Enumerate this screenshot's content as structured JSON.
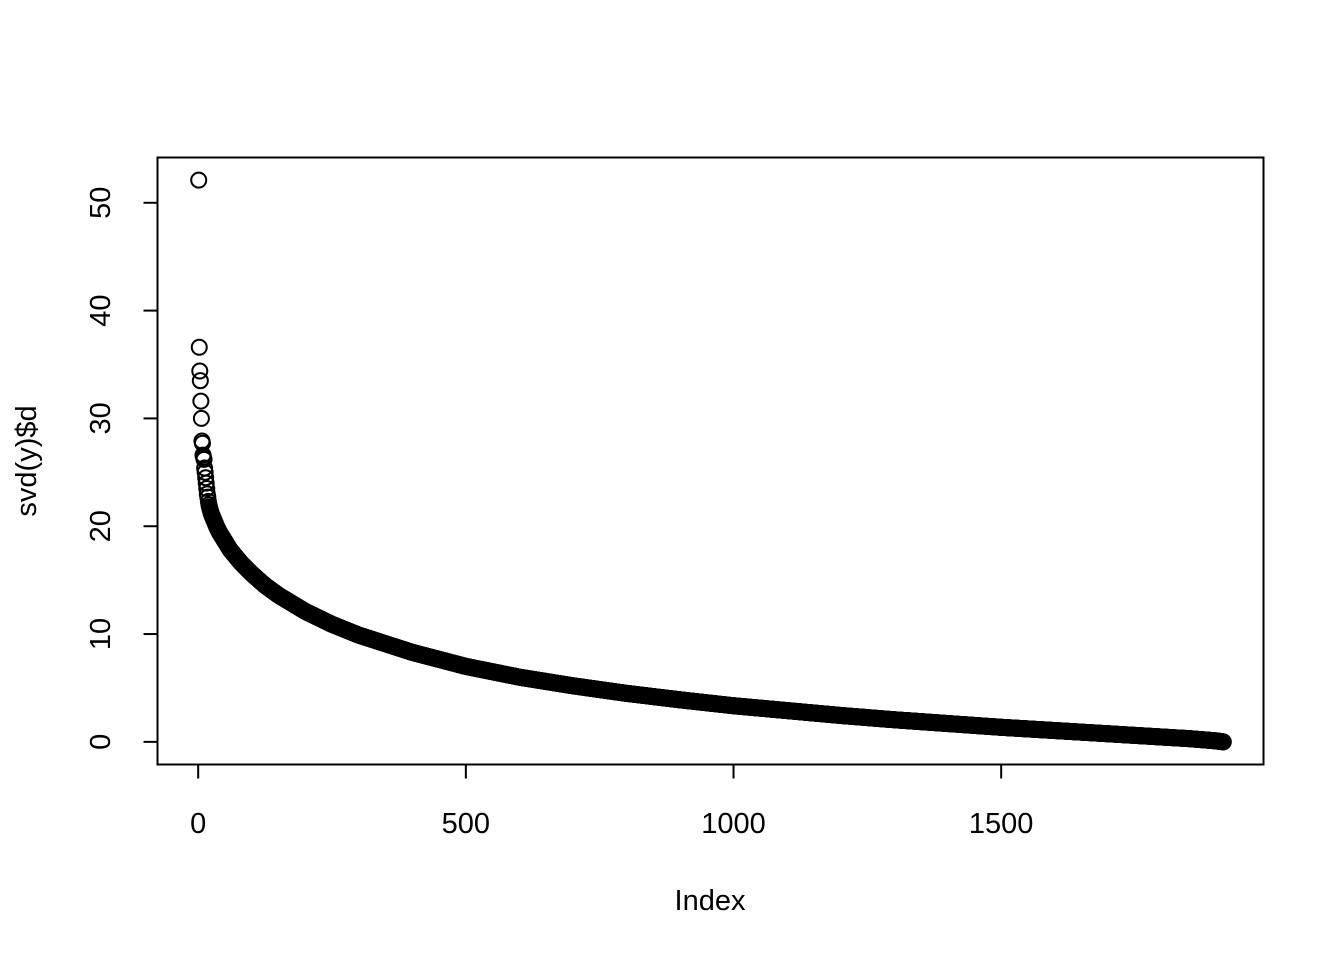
{
  "chart_data": {
    "type": "scatter",
    "title": "",
    "xlabel": "Index",
    "ylabel": "svd(y)$d",
    "xlim": [
      -76,
      1990
    ],
    "ylim": [
      -2.1,
      54.2
    ],
    "x_ticks": [
      0,
      500,
      1000,
      1500
    ],
    "x_tick_labels": [
      "0",
      "500",
      "1000",
      "1500"
    ],
    "y_ticks": [
      0,
      10,
      20,
      30,
      40,
      50
    ],
    "y_tick_labels": [
      "0",
      "10",
      "20",
      "30",
      "40",
      "50"
    ],
    "grid": false,
    "legend": "none",
    "marker": "open-circle",
    "n_points": 1915,
    "series": [
      {
        "x": [
          1,
          2,
          3,
          4,
          5,
          6,
          7,
          8,
          9,
          10,
          11,
          12,
          13,
          14,
          15,
          16,
          17,
          18,
          19,
          20,
          22,
          25,
          30,
          35,
          40,
          50,
          60,
          70,
          80,
          100,
          125,
          150,
          200,
          250,
          300,
          400,
          500,
          600,
          700,
          800,
          900,
          1000,
          1100,
          1200,
          1300,
          1400,
          1500,
          1600,
          1700,
          1800,
          1850,
          1900,
          1915
        ],
        "values": [
          52.1,
          36.6,
          34.4,
          33.5,
          31.6,
          30.0,
          27.9,
          27.7,
          26.6,
          26.4,
          26.2,
          25.4,
          25.0,
          24.5,
          24.0,
          23.5,
          23.0,
          22.7,
          22.3,
          22.0,
          21.6,
          21.1,
          20.5,
          19.9,
          19.4,
          18.6,
          17.8,
          17.2,
          16.6,
          15.6,
          14.5,
          13.6,
          12.1,
          10.9,
          9.9,
          8.3,
          7.0,
          6.0,
          5.2,
          4.5,
          3.9,
          3.35,
          2.9,
          2.45,
          2.05,
          1.7,
          1.35,
          1.05,
          0.75,
          0.45,
          0.3,
          0.1,
          0.0
        ]
      }
    ]
  }
}
